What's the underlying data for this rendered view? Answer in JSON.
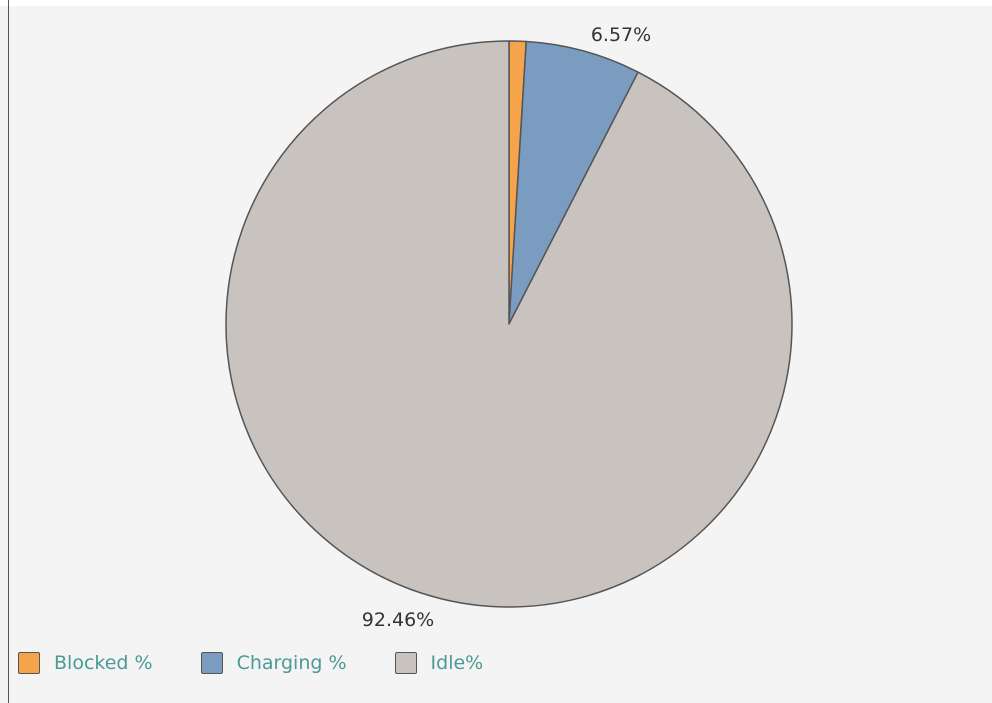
{
  "chart_data": {
    "type": "pie",
    "start_angle_deg": 0,
    "direction": "clockwise",
    "slices": [
      {
        "name": "Blocked %",
        "value": 0.97,
        "color": "#f5a44c",
        "label": ""
      },
      {
        "name": "Charging %",
        "value": 6.57,
        "color": "#7a9cc0",
        "label": "6.57%"
      },
      {
        "name": "Idle%",
        "value": 92.46,
        "color": "#c9c3bf",
        "label": "92.46%"
      }
    ],
    "legend": {
      "position": "bottom-left",
      "entries": [
        "Blocked %",
        "Charging %",
        "Idle%"
      ]
    },
    "outline_color": "#555555"
  }
}
